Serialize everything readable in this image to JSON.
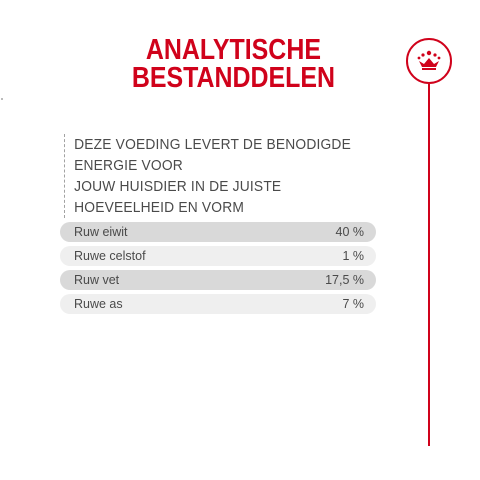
{
  "heading": {
    "line1": "ANALYTISCHE",
    "line2": "BESTANDDELEN"
  },
  "badge": {
    "icon": "crown-icon",
    "color": "#d0021b"
  },
  "intro": {
    "line1": "DEZE VOEDING LEVERT DE BENODIGDE ENERGIE VOOR",
    "line2": "JOUW HUISDIER IN DE JUISTE HOEVEELHEID EN VORM"
  },
  "nutrients": [
    {
      "label": "Ruw eiwit",
      "value": "40 %"
    },
    {
      "label": "Ruwe celstof",
      "value": "1 %"
    },
    {
      "label": "Ruw vet",
      "value": "17,5 %"
    },
    {
      "label": "Ruwe as",
      "value": "7 %"
    }
  ],
  "colors": {
    "accent": "#d0021b",
    "row_dark": "#d9d9d9",
    "row_light": "#efefef",
    "text": "#4a4a4a"
  }
}
